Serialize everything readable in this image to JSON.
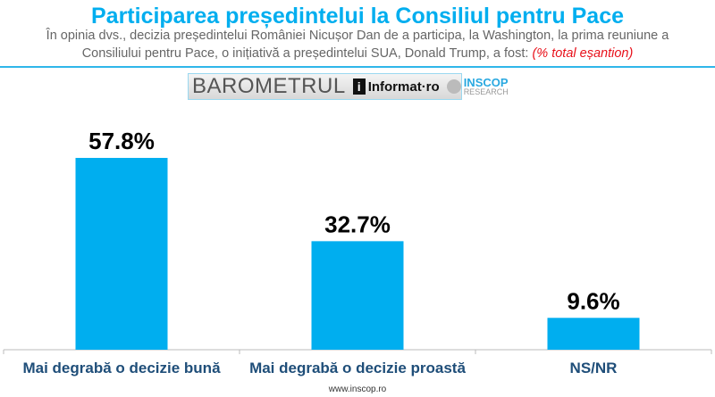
{
  "title": "Participarea președintelui la Consiliul pentru Pace",
  "subtitle": "În opinia dvs., decizia președintelui României Nicușor Dan de a participa, la Washington, la prima reuniune a Consiliului pentru Pace, o inițiativă a președintelui SUA, Donald Trump, a fost:",
  "subtitle_note": "(% total eșantion)",
  "logo": {
    "barometru": "BAROMETRUL",
    "informat": "Informat·ro",
    "inscop": "INSCOP",
    "research": "RESEARCH"
  },
  "footer": "www.inscop.ro",
  "chart_data": {
    "type": "bar",
    "categories": [
      "Mai degrabă o decizie bună",
      "Mai degrabă o decizie proastă",
      "NS/NR"
    ],
    "values": [
      57.8,
      32.7,
      9.6
    ],
    "labels": [
      "57.8%",
      "32.7%",
      "9.6%"
    ],
    "ylim": [
      0,
      100
    ],
    "grid": false,
    "bar_color": "#00aeef",
    "label_color": "#1f4e79"
  }
}
